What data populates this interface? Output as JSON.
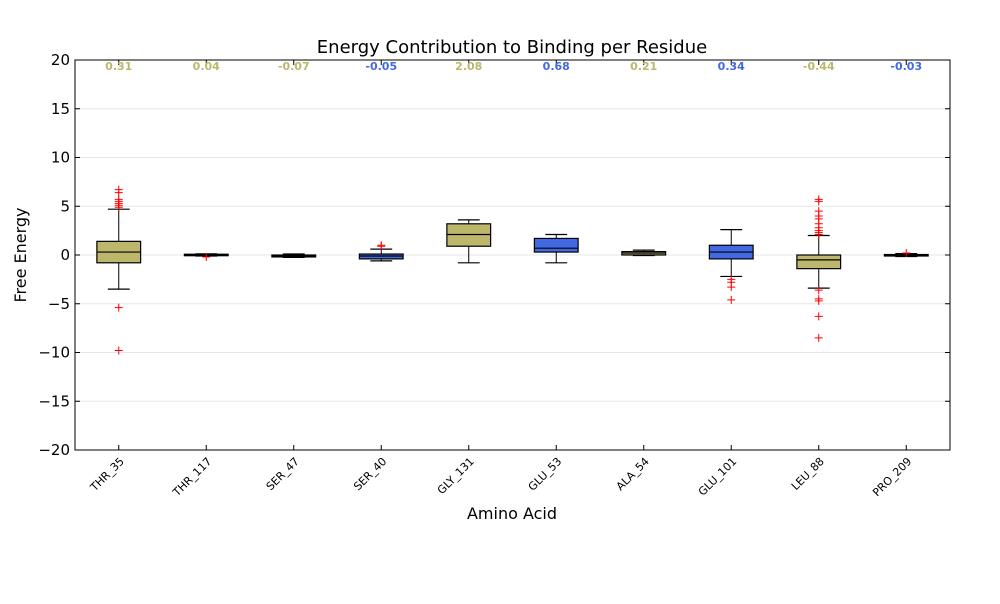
{
  "chart_data": {
    "type": "box",
    "title": "Energy Contribution to Binding per Residue",
    "xlabel": "Amino Acid",
    "ylabel": "Free Energy",
    "ylim": [
      -20,
      20
    ],
    "yticks": [
      -20,
      -15,
      -10,
      -5,
      0,
      5,
      10,
      15,
      20
    ],
    "grid": "horizontal",
    "colors": {
      "olive": "#bdb76b",
      "blue": "#4169e1",
      "outlier": "#ff0000",
      "median": "#000000"
    },
    "categories": [
      "THR_35",
      "THR_117",
      "SER_47",
      "SER_40",
      "GLY_131",
      "GLU_53",
      "ALA_54",
      "GLU_101",
      "LEU_88",
      "PRO_209"
    ],
    "mean_labels": [
      "0.31",
      "0.04",
      "-0.07",
      "-0.05",
      "2.08",
      "0.68",
      "0.21",
      "0.34",
      "-0.44",
      "-0.03"
    ],
    "boxes": [
      {
        "category": "THR_35",
        "color": "olive",
        "whislo": -3.5,
        "q1": -0.8,
        "med": 0.3,
        "q3": 1.4,
        "whishi": 4.7,
        "fliers": [
          6.7,
          6.4,
          5.7,
          5.5,
          5.3,
          5.1,
          4.9,
          -5.4,
          -9.8
        ]
      },
      {
        "category": "THR_117",
        "color": "olive",
        "whislo": -0.1,
        "q1": -0.05,
        "med": 0.0,
        "q3": 0.08,
        "whishi": 0.12,
        "fliers": [
          -0.2
        ]
      },
      {
        "category": "SER_47",
        "color": "olive",
        "whislo": -0.25,
        "q1": -0.2,
        "med": -0.1,
        "q3": 0.0,
        "whishi": 0.1,
        "fliers": []
      },
      {
        "category": "SER_40",
        "color": "blue",
        "whislo": -0.6,
        "q1": -0.4,
        "med": -0.1,
        "q3": 0.1,
        "whishi": 0.6,
        "fliers": [
          0.9,
          1.0
        ]
      },
      {
        "category": "GLY_131",
        "color": "olive",
        "whislo": -0.8,
        "q1": 0.9,
        "med": 2.1,
        "q3": 3.2,
        "whishi": 3.6,
        "fliers": []
      },
      {
        "category": "GLU_53",
        "color": "blue",
        "whislo": -0.8,
        "q1": 0.3,
        "med": 0.7,
        "q3": 1.7,
        "whishi": 2.1,
        "fliers": []
      },
      {
        "category": "ALA_54",
        "color": "olive",
        "whislo": -0.05,
        "q1": 0.0,
        "med": 0.2,
        "q3": 0.35,
        "whishi": 0.5,
        "fliers": []
      },
      {
        "category": "GLU_101",
        "color": "blue",
        "whislo": -2.2,
        "q1": -0.4,
        "med": 0.3,
        "q3": 1.0,
        "whishi": 2.6,
        "fliers": [
          -2.5,
          -2.8,
          -3.3,
          -4.6
        ]
      },
      {
        "category": "LEU_88",
        "color": "olive",
        "whislo": -3.4,
        "q1": -1.4,
        "med": -0.5,
        "q3": 0.0,
        "whishi": 2.0,
        "fliers": [
          5.7,
          5.5,
          4.5,
          4.0,
          3.7,
          3.2,
          2.8,
          2.5,
          2.3,
          2.1,
          -3.6,
          -4.5,
          -4.7,
          -6.3,
          -8.5
        ]
      },
      {
        "category": "PRO_209",
        "color": "blue",
        "whislo": -0.15,
        "q1": -0.1,
        "med": -0.03,
        "q3": 0.05,
        "whishi": 0.15,
        "fliers": [
          0.2
        ]
      }
    ]
  }
}
